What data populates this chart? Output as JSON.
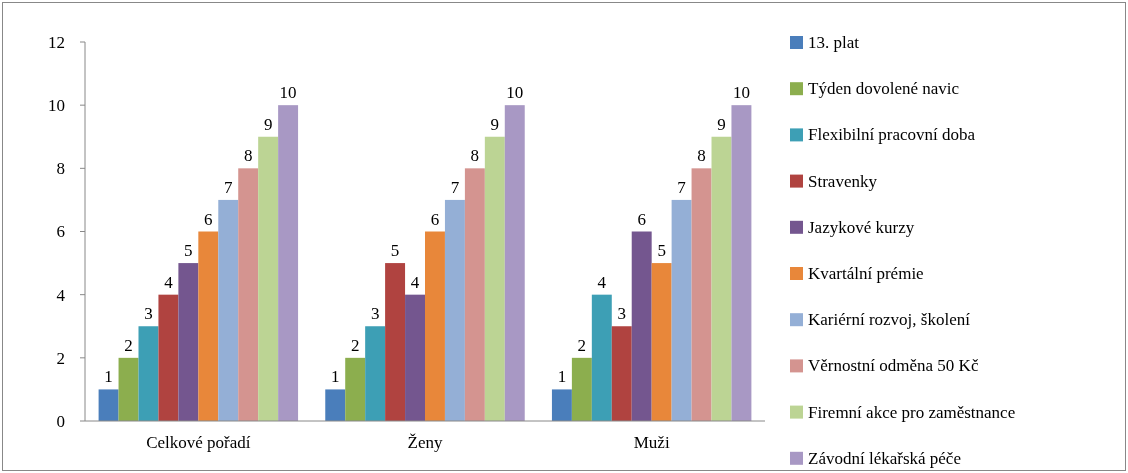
{
  "chart_data": {
    "type": "bar",
    "categories": [
      "Celkové pořadí",
      "Ženy",
      "Muži"
    ],
    "ylim": [
      0,
      12
    ],
    "yticks": [
      0,
      2,
      4,
      6,
      8,
      10,
      12
    ],
    "data_labels": true,
    "legend": "right",
    "grid": false,
    "series": [
      {
        "name": "13. plat",
        "color": "#4a7ebb",
        "values": [
          1,
          1,
          1
        ]
      },
      {
        "name": "Týden dovolené navic",
        "color": "#8cae4e",
        "values": [
          2,
          2,
          2
        ]
      },
      {
        "name": "Flexibilní pracovní doba",
        "color": "#3d9fb5",
        "values": [
          3,
          3,
          4
        ]
      },
      {
        "name": "Stravenky",
        "color": "#b04340",
        "values": [
          4,
          5,
          3
        ]
      },
      {
        "name": "Jazykové kurzy",
        "color": "#74568f",
        "values": [
          5,
          4,
          6
        ]
      },
      {
        "name": "Kvartální prémie",
        "color": "#e8873a",
        "values": [
          6,
          6,
          5
        ]
      },
      {
        "name": "Kariérní rozvoj, školení",
        "color": "#94afd6",
        "values": [
          7,
          7,
          7
        ]
      },
      {
        "name": "Věrnostní odměna 50 Kč",
        "color": "#d49490",
        "values": [
          8,
          8,
          8
        ]
      },
      {
        "name": "Firemní akce pro zaměstnance",
        "color": "#bcd494",
        "values": [
          9,
          9,
          9
        ]
      },
      {
        "name": "Závodní lékařská péče",
        "color": "#a898c4",
        "values": [
          10,
          10,
          10
        ]
      }
    ]
  }
}
